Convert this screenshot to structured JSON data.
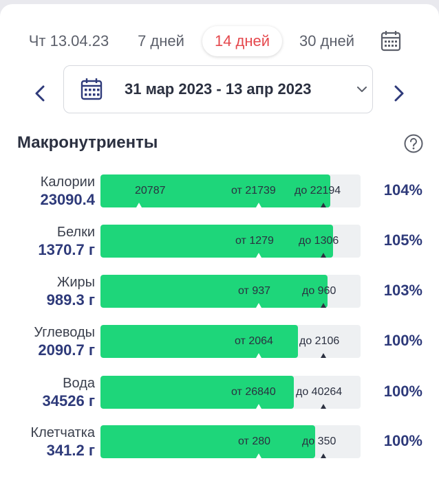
{
  "period_tabs": {
    "day": "Чт 13.04.23",
    "week": "7 дней",
    "two_weeks": "14 дней",
    "month": "30 дней",
    "active": "two_weeks"
  },
  "date_range": {
    "text": "31 мар 2023 - 13 апр 2023",
    "prev_icon": "chevron-left-icon",
    "next_icon": "chevron-right-icon",
    "calendar_icon": "calendar-icon"
  },
  "section": {
    "title": "Макронутриенты",
    "help_icon": "help-circle-icon"
  },
  "colors": {
    "accent_red": "#e5484d",
    "bar_fill": "#1ed67a",
    "value_blue": "#2e3a7a"
  },
  "nutrients": [
    {
      "name": "Калории",
      "value": "23090.4",
      "current": "20787",
      "from": "от 21739",
      "to": "до 22194",
      "percent": "104%",
      "fill_ratio": 0.884
    },
    {
      "name": "Белки",
      "value": "1370.7 г",
      "current": "",
      "from": "от 1279",
      "to": "до 1306",
      "percent": "105%",
      "fill_ratio": 0.894
    },
    {
      "name": "Жиры",
      "value": "989.3 г",
      "current": "",
      "from": "от 937",
      "to": "до 960",
      "percent": "103%",
      "fill_ratio": 0.873
    },
    {
      "name": "Углеводы",
      "value": "2090.7 г",
      "current": "",
      "from": "от 2064",
      "to": "до 2106",
      "percent": "100%",
      "fill_ratio": 0.759
    },
    {
      "name": "Вода",
      "value": "34526 г",
      "current": "",
      "from": "от 26840",
      "to": "до 40264",
      "percent": "100%",
      "fill_ratio": 0.743
    },
    {
      "name": "Клетчатка",
      "value": "341.2 г",
      "current": "",
      "from": "от 280",
      "to": "до 350",
      "percent": "100%",
      "fill_ratio": 0.825
    }
  ]
}
